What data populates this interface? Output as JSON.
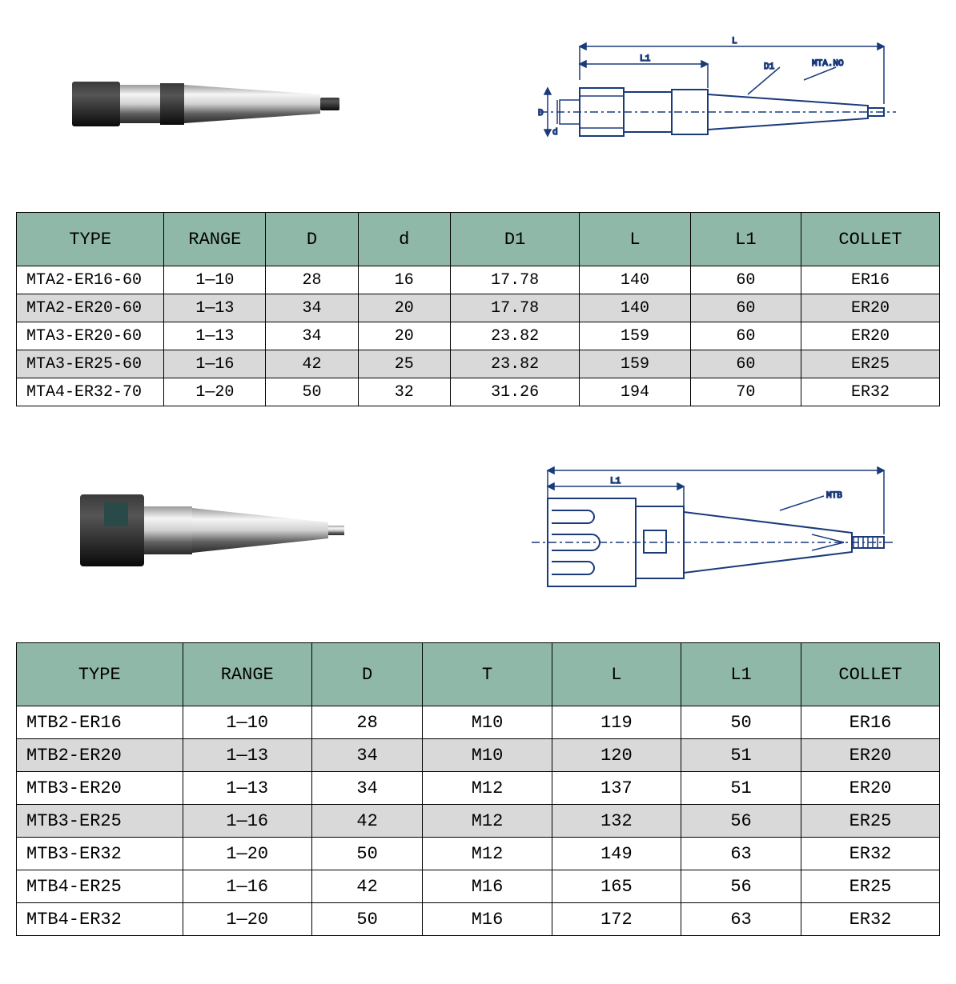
{
  "table1": {
    "header_bg": "#8fb8a8",
    "alt_row_bg": "#d9d9d9",
    "border_color": "#000000",
    "font": "Courier New",
    "header_fontsize": 22,
    "cell_fontsize": 20,
    "columns": [
      "TYPE",
      "RANGE",
      "D",
      "d",
      "D1",
      "L",
      "L1",
      "COLLET"
    ],
    "col_widths_pct": [
      16,
      11,
      10,
      10,
      14,
      12,
      12,
      15
    ],
    "rows": [
      [
        "MTA2-ER16-60",
        "1—10",
        "28",
        "16",
        "17.78",
        "140",
        "60",
        "ER16"
      ],
      [
        "MTA2-ER20-60",
        "1—13",
        "34",
        "20",
        "17.78",
        "140",
        "60",
        "ER20"
      ],
      [
        "MTA3-ER20-60",
        "1—13",
        "34",
        "20",
        "23.82",
        "159",
        "60",
        "ER20"
      ],
      [
        "MTA3-ER25-60",
        "1—16",
        "42",
        "25",
        "23.82",
        "159",
        "60",
        "ER25"
      ],
      [
        "MTA4-ER32-70",
        "1—20",
        "50",
        "32",
        "31.26",
        "194",
        "70",
        "ER32"
      ]
    ],
    "alt_row_indices": [
      1,
      3
    ]
  },
  "table2": {
    "header_bg": "#8fb8a8",
    "alt_row_bg": "#d9d9d9",
    "border_color": "#000000",
    "font": "Courier New",
    "header_fontsize": 22,
    "cell_fontsize": 22,
    "columns": [
      "TYPE",
      "RANGE",
      "D",
      "T",
      "L",
      "L1",
      "COLLET"
    ],
    "col_widths_pct": [
      18,
      14,
      12,
      14,
      14,
      13,
      15
    ],
    "rows": [
      [
        "MTB2-ER16",
        "1—10",
        "28",
        "M10",
        "119",
        "50",
        "ER16"
      ],
      [
        "MTB2-ER20",
        "1—13",
        "34",
        "M10",
        "120",
        "51",
        "ER20"
      ],
      [
        "MTB3-ER20",
        "1—13",
        "34",
        "M12",
        "137",
        "51",
        "ER20"
      ],
      [
        "MTB3-ER25",
        "1—16",
        "42",
        "M12",
        "132",
        "56",
        "ER25"
      ],
      [
        "MTB3-ER32",
        "1—20",
        "50",
        "M12",
        "149",
        "63",
        "ER32"
      ],
      [
        "MTB4-ER25",
        "1—16",
        "42",
        "M16",
        "165",
        "56",
        "ER25"
      ],
      [
        "MTB4-ER32",
        "1—20",
        "50",
        "M16",
        "172",
        "63",
        "ER32"
      ]
    ],
    "alt_row_indices": [
      1,
      3
    ]
  },
  "diagram1": {
    "labels": {
      "L": "L",
      "L1": "L1",
      "D1": "D1",
      "MTA": "MTA.NO",
      "D": "D",
      "d": "d"
    },
    "stroke": "#1a3a7a",
    "centerline_dash": "8 3 2 3"
  },
  "diagram2": {
    "labels": {
      "L": "L",
      "L1": "L1",
      "MTB": "MTB"
    },
    "stroke": "#1a3a7a"
  },
  "photo": {
    "body_gradient_light": "#e8e8e8",
    "body_gradient_dark": "#5a5a5a",
    "nut_color": "#1a1a1a",
    "tang_color": "#1a1a1a"
  }
}
